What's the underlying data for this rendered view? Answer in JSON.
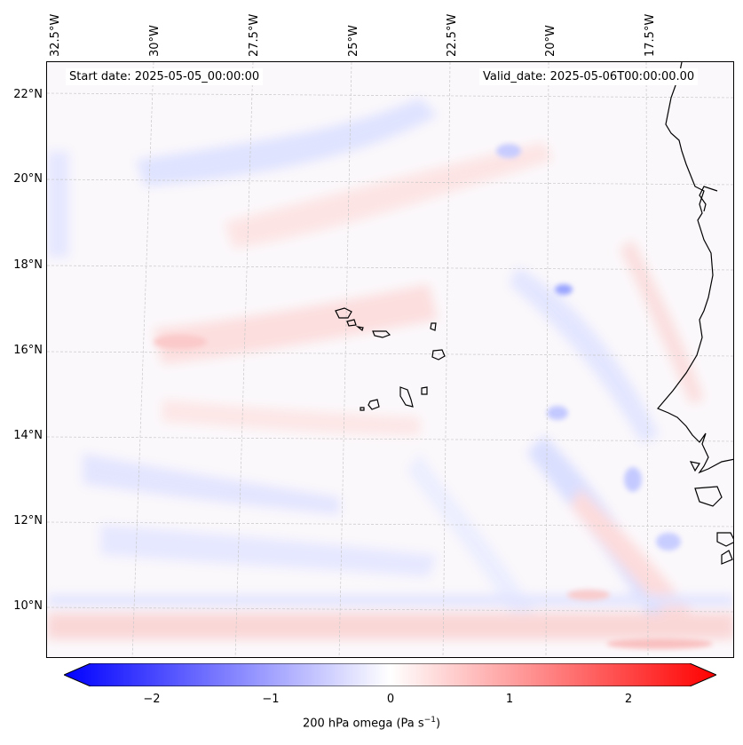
{
  "map": {
    "start_label": "Start date: 2025-05-05_00:00:00",
    "valid_label": "Valid_date: 2025-05-06T00:00:00.00",
    "lon_labels": [
      "32.5°W",
      "30°W",
      "27.5°W",
      "25°W",
      "22.5°W",
      "20°W",
      "17.5°W"
    ],
    "lat_labels": [
      "22°N",
      "20°N",
      "18°N",
      "16°N",
      "14°N",
      "12°N",
      "10°N"
    ],
    "variable": "200 hPa omega",
    "units": "Pa s",
    "units_exponent": "−1"
  },
  "colorbar": {
    "tick_labels": [
      "−2",
      "−1",
      "0",
      "1",
      "2"
    ],
    "range": [
      -2.75,
      2.75
    ],
    "colormap": [
      "#0000ff",
      "#ffffff",
      "#ff0000"
    ]
  }
}
